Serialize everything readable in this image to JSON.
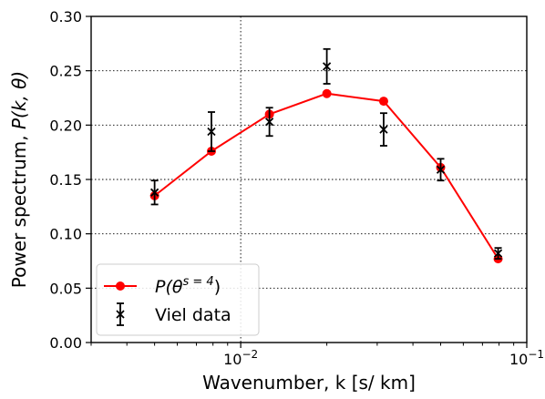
{
  "chart_data": {
    "type": "line",
    "xscale": "log",
    "xlim": [
      0.003,
      0.1
    ],
    "ylim": [
      0.0,
      0.3
    ],
    "xlabel": "Wavenumber, k [s/ km]",
    "ylabel_prefix": "Power spectrum, ",
    "ylabel_math": "P(k, θ)",
    "x_ticks": [
      {
        "value": 0.01,
        "base": "10",
        "exp": "−2"
      },
      {
        "value": 0.1,
        "base": "10",
        "exp": "−1"
      }
    ],
    "y_ticks": [
      "0.00",
      "0.05",
      "0.10",
      "0.15",
      "0.20",
      "0.25",
      "0.30"
    ],
    "y_tick_values": [
      0.0,
      0.05,
      0.1,
      0.15,
      0.2,
      0.25,
      0.3
    ],
    "grid": "dotted",
    "legend_position": "lower-left",
    "series": [
      {
        "label": "P(θ^{s=4})",
        "label_base": "P(θ",
        "label_sup": "s = 4",
        "label_close": ")",
        "color": "#ff0000",
        "marker": "circle",
        "x": [
          0.005,
          0.0079,
          0.0126,
          0.02,
          0.0316,
          0.05,
          0.0794
        ],
        "y": [
          0.135,
          0.176,
          0.21,
          0.229,
          0.222,
          0.161,
          0.077
        ]
      },
      {
        "label": "Viel data",
        "color": "#000000",
        "marker": "x",
        "errorbars": true,
        "x": [
          0.005,
          0.0079,
          0.0126,
          0.02,
          0.0316,
          0.05,
          0.0794
        ],
        "y": [
          0.138,
          0.194,
          0.203,
          0.254,
          0.196,
          0.159,
          0.082
        ],
        "yerr": [
          0.011,
          0.018,
          0.013,
          0.016,
          0.015,
          0.01,
          0.005
        ]
      }
    ]
  }
}
